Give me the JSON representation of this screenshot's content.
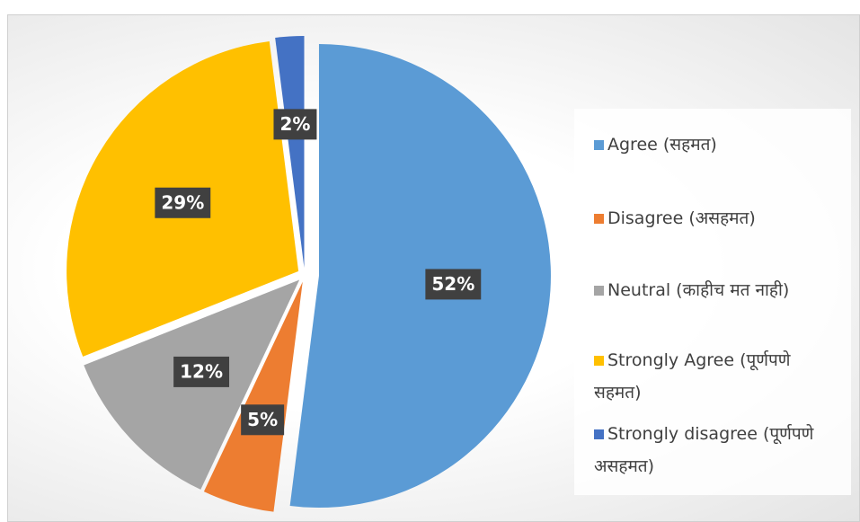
{
  "chart_data": {
    "type": "pie",
    "categories": [
      "Agree (सहमत)",
      "Disagree (असहमत)",
      "Neutral (काहीच मत नाही)",
      "Strongly Agree (पूर्णपणे सहमत)",
      "Strongly disagree (पूर्णपणे असहमत)"
    ],
    "values": [
      52,
      5,
      12,
      29,
      2
    ],
    "value_labels": [
      "52%",
      "5%",
      "12%",
      "29%",
      "2%"
    ],
    "colors": [
      "#5b9bd5",
      "#ed7d31",
      "#a5a5a5",
      "#ffc000",
      "#4472c4"
    ],
    "legend": "right"
  }
}
